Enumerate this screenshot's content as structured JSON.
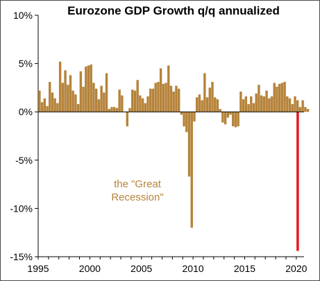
{
  "chart_data": {
    "type": "bar",
    "title": "Eurozone GDP Growth q/q annualized",
    "xlabel": "",
    "ylabel": "",
    "ylim": [
      -15,
      10
    ],
    "xlim": [
      1995,
      2020.75
    ],
    "y_ticks": [
      "10%",
      "5%",
      "0%",
      "-5%",
      "-10%",
      "-15%"
    ],
    "y_tick_values": [
      10,
      5,
      0,
      -5,
      -10,
      -15
    ],
    "x_ticks": [
      "1995",
      "2000",
      "2005",
      "2010",
      "2015",
      "2020"
    ],
    "x_tick_values": [
      1995,
      2000,
      2005,
      2010,
      2015,
      2020
    ],
    "grid": false,
    "legend": "none",
    "bar_color": "#b5833a",
    "highlight_color": "#e8141c",
    "annotation": [
      "the \"Great",
      "Recession\""
    ],
    "series": [
      {
        "start_year": 1995,
        "quarters_per_year": 4,
        "values": [
          2.2,
          1.0,
          1.4,
          0.6,
          3.1,
          2.0,
          1.4,
          0.9,
          5.2,
          3.0,
          4.3,
          2.8,
          3.8,
          2.2,
          1.8,
          0.8,
          4.2,
          2.6,
          4.7,
          4.8,
          4.9,
          3.0,
          2.4,
          1.3,
          2.7,
          2.0,
          4.0,
          0.3,
          0.5,
          0.5,
          0.4,
          2.3,
          1.7,
          0.0,
          -1.5,
          0.4,
          2.3,
          2.2,
          3.3,
          1.7,
          1.4,
          0.9,
          1.6,
          2.4,
          2.4,
          3.0,
          3.1,
          4.5,
          2.9,
          3.0,
          4.8,
          2.7,
          2.1,
          2.7,
          2.4,
          -0.3,
          -1.5,
          -2.1,
          -6.7,
          -12.0,
          -1.0,
          1.5,
          1.8,
          1.2,
          4.0,
          1.5,
          2.5,
          3.1,
          1.5,
          1.3,
          0.3,
          -1.1,
          -1.3,
          -0.6,
          -0.3,
          -1.5,
          -1.6,
          -1.5,
          2.1,
          1.3,
          1.6,
          0.8,
          1.6,
          0.9,
          1.9,
          2.8,
          1.7,
          1.6,
          2.2,
          1.4,
          1.6,
          3.0,
          2.6,
          2.9,
          3.0,
          3.1,
          1.6,
          1.4,
          0.8,
          1.6,
          1.2,
          0.5,
          1.2,
          0.5,
          0.3
        ]
      },
      {
        "start": 2020.0,
        "values": [
          -14.4
        ]
      }
    ]
  }
}
